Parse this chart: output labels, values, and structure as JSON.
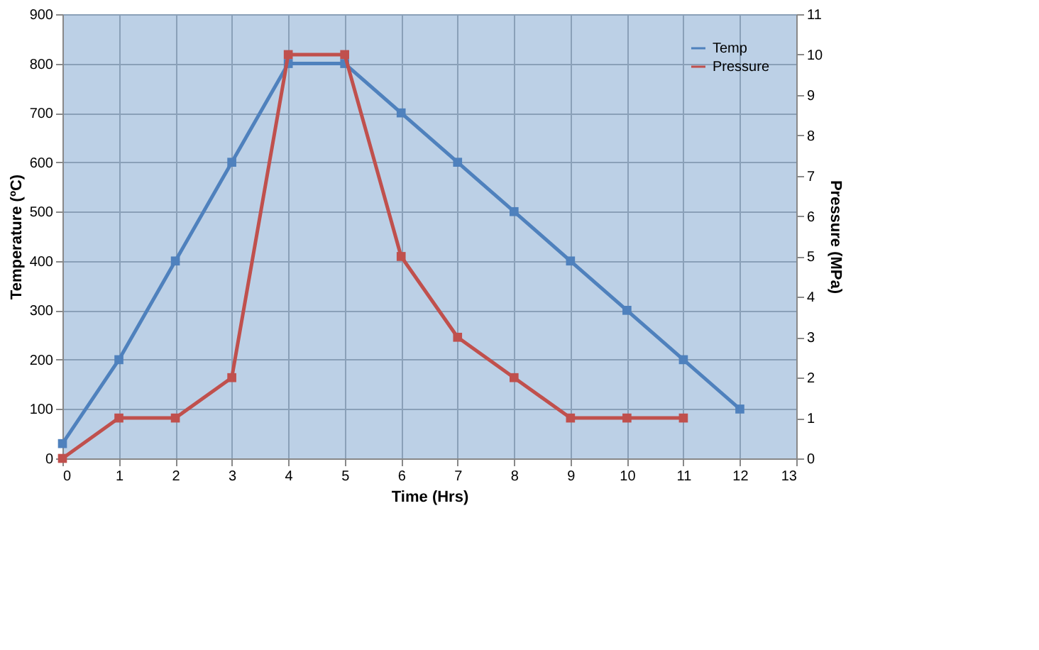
{
  "chart_data": {
    "type": "line",
    "xlabel": "Time (Hrs)",
    "ylabel": "Temperature (ºC)",
    "y2label": "Pressure (MPa)",
    "x": [
      0,
      1,
      2,
      3,
      4,
      5,
      6,
      7,
      8,
      9,
      10,
      11,
      12
    ],
    "series": [
      {
        "name": "Temp",
        "color": "#4f81bd",
        "values": [
          30,
          200,
          400,
          600,
          800,
          800,
          700,
          600,
          500,
          400,
          300,
          200,
          100
        ]
      },
      {
        "name": "Pressure",
        "color": "#c0504d",
        "axis": "y2",
        "x": [
          0,
          1,
          2,
          3,
          4,
          5,
          6,
          7,
          8,
          9,
          10,
          11
        ],
        "values": [
          0,
          1,
          1,
          2,
          10,
          10,
          5,
          3,
          2,
          1,
          1,
          1
        ]
      }
    ],
    "xlim": [
      0,
      13
    ],
    "xticks": [
      0,
      1,
      2,
      3,
      4,
      5,
      6,
      7,
      8,
      9,
      10,
      11,
      12,
      13
    ],
    "ylim": [
      0,
      900
    ],
    "yticks": [
      0,
      100,
      200,
      300,
      400,
      500,
      600,
      700,
      800,
      900
    ],
    "y2lim": [
      0,
      11
    ],
    "y2ticks": [
      0,
      1,
      2,
      3,
      4,
      5,
      6,
      7,
      8,
      9,
      10,
      11
    ],
    "grid": true,
    "legend": "top right",
    "marker": "square",
    "line_style": "solid"
  }
}
